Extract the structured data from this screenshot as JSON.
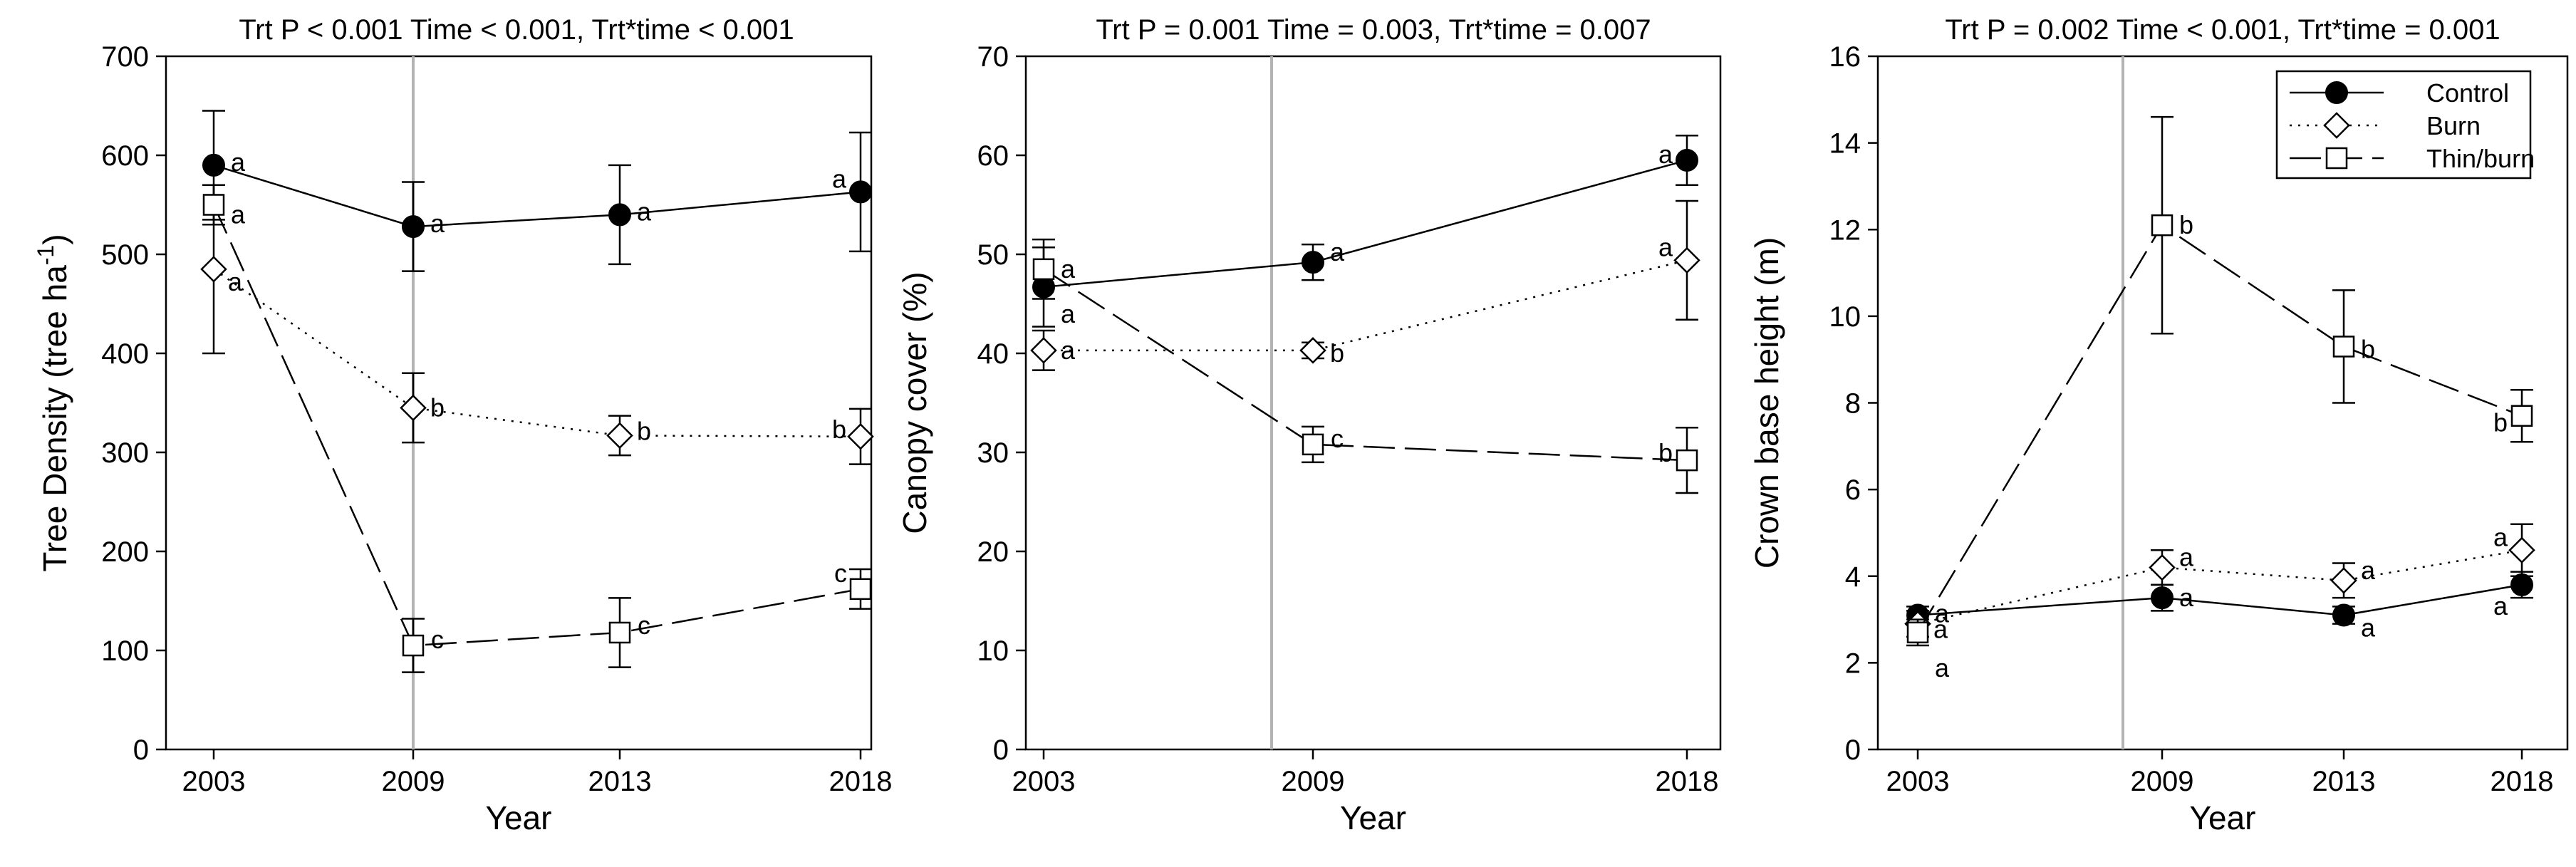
{
  "chart_data": [
    {
      "type": "line",
      "title": "Trt P < 0.001 Time < 0.001, Trt*time < 0.001",
      "xlabel": "Year",
      "ylabel_main": "Tree Density (tree ha",
      "ylabel_sup": "-1",
      "ylabel_close": ")",
      "ylim": [
        0,
        700
      ],
      "yticks": [
        "0",
        "100",
        "200",
        "300",
        "400",
        "500",
        "600",
        "700"
      ],
      "categories": [
        "2003",
        "2009",
        "2013",
        "2018"
      ],
      "treatment_line_after": "2003",
      "series": [
        {
          "name": "Control",
          "values": [
            590,
            528,
            540,
            563
          ],
          "err": [
            55,
            45,
            50,
            60
          ],
          "letters": [
            "a",
            "a",
            "a",
            "a"
          ]
        },
        {
          "name": "Burn",
          "values": [
            485,
            345,
            317,
            316
          ],
          "err": [
            85,
            35,
            20,
            28
          ],
          "letters": [
            "a",
            "b",
            "b",
            "b"
          ]
        },
        {
          "name": "Thin/burn",
          "values": [
            550,
            105,
            118,
            162
          ],
          "err": [
            20,
            27,
            35,
            20
          ],
          "letters": [
            "a",
            "c",
            "c",
            "c"
          ]
        }
      ]
    },
    {
      "type": "line",
      "title": "Trt P = 0.001 Time = 0.003, Trt*time = 0.007",
      "xlabel": "Year",
      "ylabel_main": "Canopy cover (%)",
      "ylabel_sup": "",
      "ylabel_close": "",
      "ylim": [
        0,
        70
      ],
      "yticks": [
        "0",
        "10",
        "20",
        "30",
        "40",
        "50",
        "60",
        "70"
      ],
      "categories": [
        "2003",
        "2009",
        "2018"
      ],
      "treatment_line_after": "2003",
      "series": [
        {
          "name": "Control",
          "values": [
            46.7,
            49.2,
            59.5
          ],
          "err": [
            4.0,
            1.8,
            2.5
          ],
          "letters": [
            "a",
            "a",
            "a"
          ]
        },
        {
          "name": "Burn",
          "values": [
            40.3,
            40.3,
            49.4
          ],
          "err": [
            2.0,
            0.8,
            6.0
          ],
          "letters": [
            "a",
            "b",
            "a"
          ]
        },
        {
          "name": "Thin/burn",
          "values": [
            48.5,
            30.8,
            29.2
          ],
          "err": [
            3.0,
            1.8,
            3.3
          ],
          "letters": [
            "a",
            "c",
            "b"
          ]
        }
      ]
    },
    {
      "type": "line",
      "title": "Trt P = 0.002 Time < 0.001, Trt*time = 0.001",
      "xlabel": "Year",
      "ylabel_main": "Crown base height (m)",
      "ylabel_sup": "",
      "ylabel_close": "",
      "ylim": [
        0,
        16
      ],
      "yticks": [
        "0",
        "2",
        "4",
        "6",
        "8",
        "10",
        "12",
        "14",
        "16"
      ],
      "categories": [
        "2003",
        "2009",
        "2013",
        "2018"
      ],
      "treatment_line_after": "2003",
      "legend": {
        "position": "top-right",
        "entries": [
          "Control",
          "Burn",
          "Thin/burn"
        ]
      },
      "series": [
        {
          "name": "Control",
          "values": [
            3.1,
            3.5,
            3.1,
            3.8
          ],
          "err": [
            0.2,
            0.3,
            0.2,
            0.3
          ],
          "letters": [
            "a",
            "a",
            "a",
            "a"
          ]
        },
        {
          "name": "Burn",
          "values": [
            2.9,
            4.2,
            3.9,
            4.6
          ],
          "err": [
            0.3,
            0.4,
            0.4,
            0.6
          ],
          "letters": [
            "a",
            "a",
            "a",
            "a"
          ]
        },
        {
          "name": "Thin/burn",
          "values": [
            2.7,
            12.1,
            9.3,
            7.7
          ],
          "err": [
            0.3,
            2.5,
            1.3,
            0.6
          ],
          "letters": [
            "a",
            "b",
            "b",
            "b"
          ]
        }
      ]
    }
  ]
}
